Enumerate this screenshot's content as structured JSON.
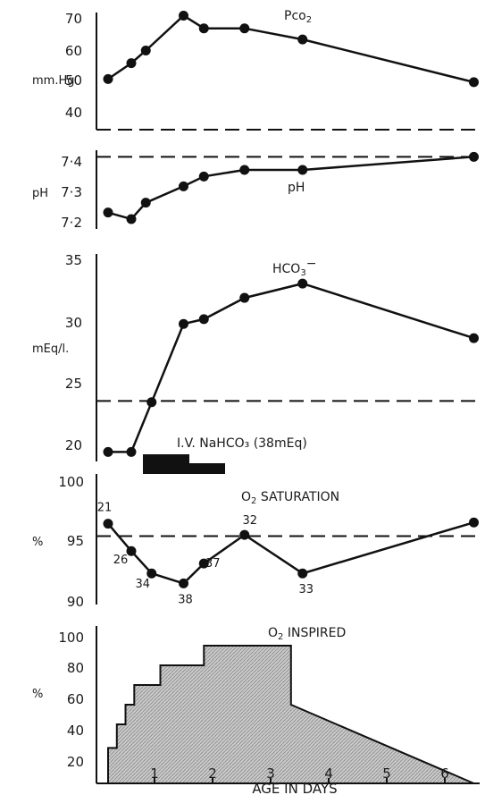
{
  "chart_data": [
    {
      "type": "line",
      "ylabel": "mm.Hg",
      "series": [
        {
          "name": "Pco2",
          "x": [
            0.2,
            0.6,
            0.85,
            1.5,
            1.85,
            2.55,
            3.55,
            6.5
          ],
          "values": [
            51,
            56,
            60,
            71,
            67,
            67,
            63.5,
            50
          ]
        }
      ],
      "ylim": [
        35,
        72
      ],
      "yticks": [
        "70",
        "60",
        "50",
        "40"
      ],
      "reference_line": 35,
      "annotation": {
        "main": "Pco",
        "sub": "2"
      }
    },
    {
      "type": "line",
      "ylabel": "pH",
      "series": [
        {
          "name": "pH",
          "x": [
            0.2,
            0.6,
            0.85,
            1.5,
            1.85,
            2.55,
            3.55,
            6.5
          ],
          "values": [
            7.23,
            7.21,
            7.26,
            7.31,
            7.34,
            7.36,
            7.36,
            7.4
          ]
        }
      ],
      "ylim": [
        7.18,
        7.42
      ],
      "yticks": [
        "7·4",
        "7·3",
        "7·2"
      ],
      "reference_line": 7.4,
      "annotation": {
        "main": "pH"
      }
    },
    {
      "type": "line",
      "ylabel": "mEq/l.",
      "series": [
        {
          "name": "HCO3−",
          "x": [
            0.2,
            0.6,
            0.95,
            1.5,
            1.85,
            2.55,
            3.55,
            6.5
          ],
          "values": [
            18.8,
            18.8,
            23,
            29.6,
            30,
            31.8,
            33,
            28.4
          ]
        }
      ],
      "ylim": [
        18,
        35.5
      ],
      "yticks": [
        "35",
        "30",
        "25",
        "20"
      ],
      "reference_line": 23.1,
      "annotation": {
        "main": "HCO",
        "sub": "3",
        "sup": "−"
      },
      "bar_label": "I.V. NaHCO₃ (38mEq)"
    },
    {
      "type": "line",
      "ylabel": "%",
      "series": [
        {
          "name": "O2 saturation",
          "x": [
            0.2,
            0.6,
            0.95,
            1.5,
            1.85,
            2.55,
            3.55,
            6.5
          ],
          "values": [
            96,
            93.8,
            92,
            91.2,
            92.8,
            95.1,
            92,
            96.1
          ]
        }
      ],
      "point_labels": [
        "21",
        "26",
        "34",
        "38",
        "37",
        "32",
        "33",
        ""
      ],
      "ylim": [
        89.5,
        100
      ],
      "yticks": [
        "100",
        "95",
        "90"
      ],
      "reference_line": 95,
      "title": {
        "main": "O",
        "sub": "2",
        "rest": " SATURATION"
      }
    },
    {
      "type": "area",
      "ylabel": "%",
      "x": [
        0.2,
        0.35,
        0.35,
        0.5,
        0.5,
        0.65,
        0.65,
        1.1,
        1.1,
        1.5,
        1.5,
        1.85,
        1.85,
        3.35,
        3.35,
        6.5
      ],
      "values": [
        38,
        38,
        50,
        50,
        60,
        60,
        70,
        70,
        80,
        80,
        80,
        80,
        90,
        90,
        60,
        20
      ],
      "ylim": [
        20,
        100
      ],
      "yticks": [
        "100",
        "80",
        "60",
        "40",
        "20"
      ],
      "title": {
        "main": "O",
        "sub": "2",
        "rest": " INSPIRED"
      },
      "xlim": [
        0,
        6.6
      ],
      "xticks": [
        "1",
        "2",
        "3",
        "4",
        "5",
        "6"
      ],
      "xlabel": "AGE IN DAYS"
    }
  ]
}
